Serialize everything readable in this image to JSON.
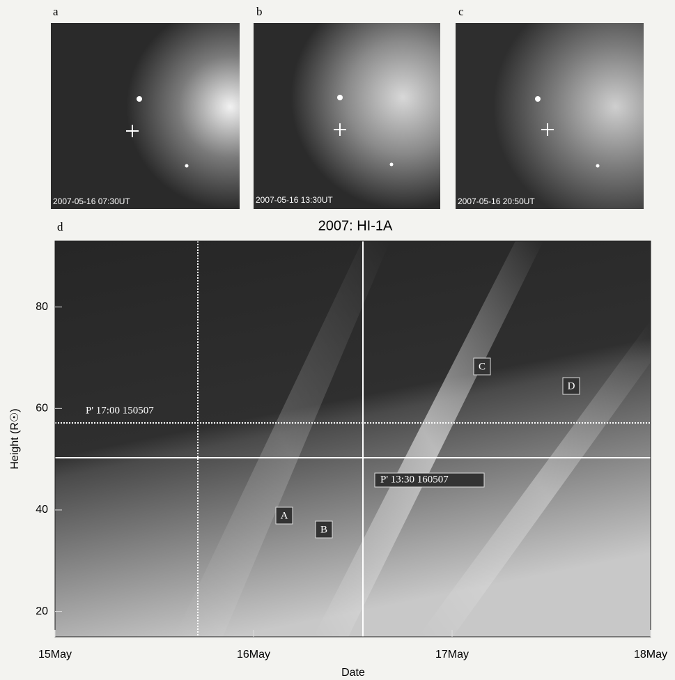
{
  "panels": [
    {
      "label": "a",
      "timestamp": "2007-05-16 07:30UT"
    },
    {
      "label": "b",
      "timestamp": "2007-05-16 13:30UT"
    },
    {
      "label": "c",
      "timestamp": "2007-05-16 20:50UT"
    }
  ],
  "plot": {
    "label": "d",
    "title": "2007: HI-1A",
    "xlabel": "Date",
    "ylabel": "Height (R☉)",
    "xticks": [
      "15May",
      "16May",
      "17May",
      "18May"
    ],
    "ylim": [
      15,
      93
    ],
    "yticks": [
      20,
      40,
      60,
      80
    ],
    "annotations": [
      "P' 17:00  150507",
      "P' 13:30  160507",
      "A",
      "B",
      "C",
      "D"
    ]
  }
}
